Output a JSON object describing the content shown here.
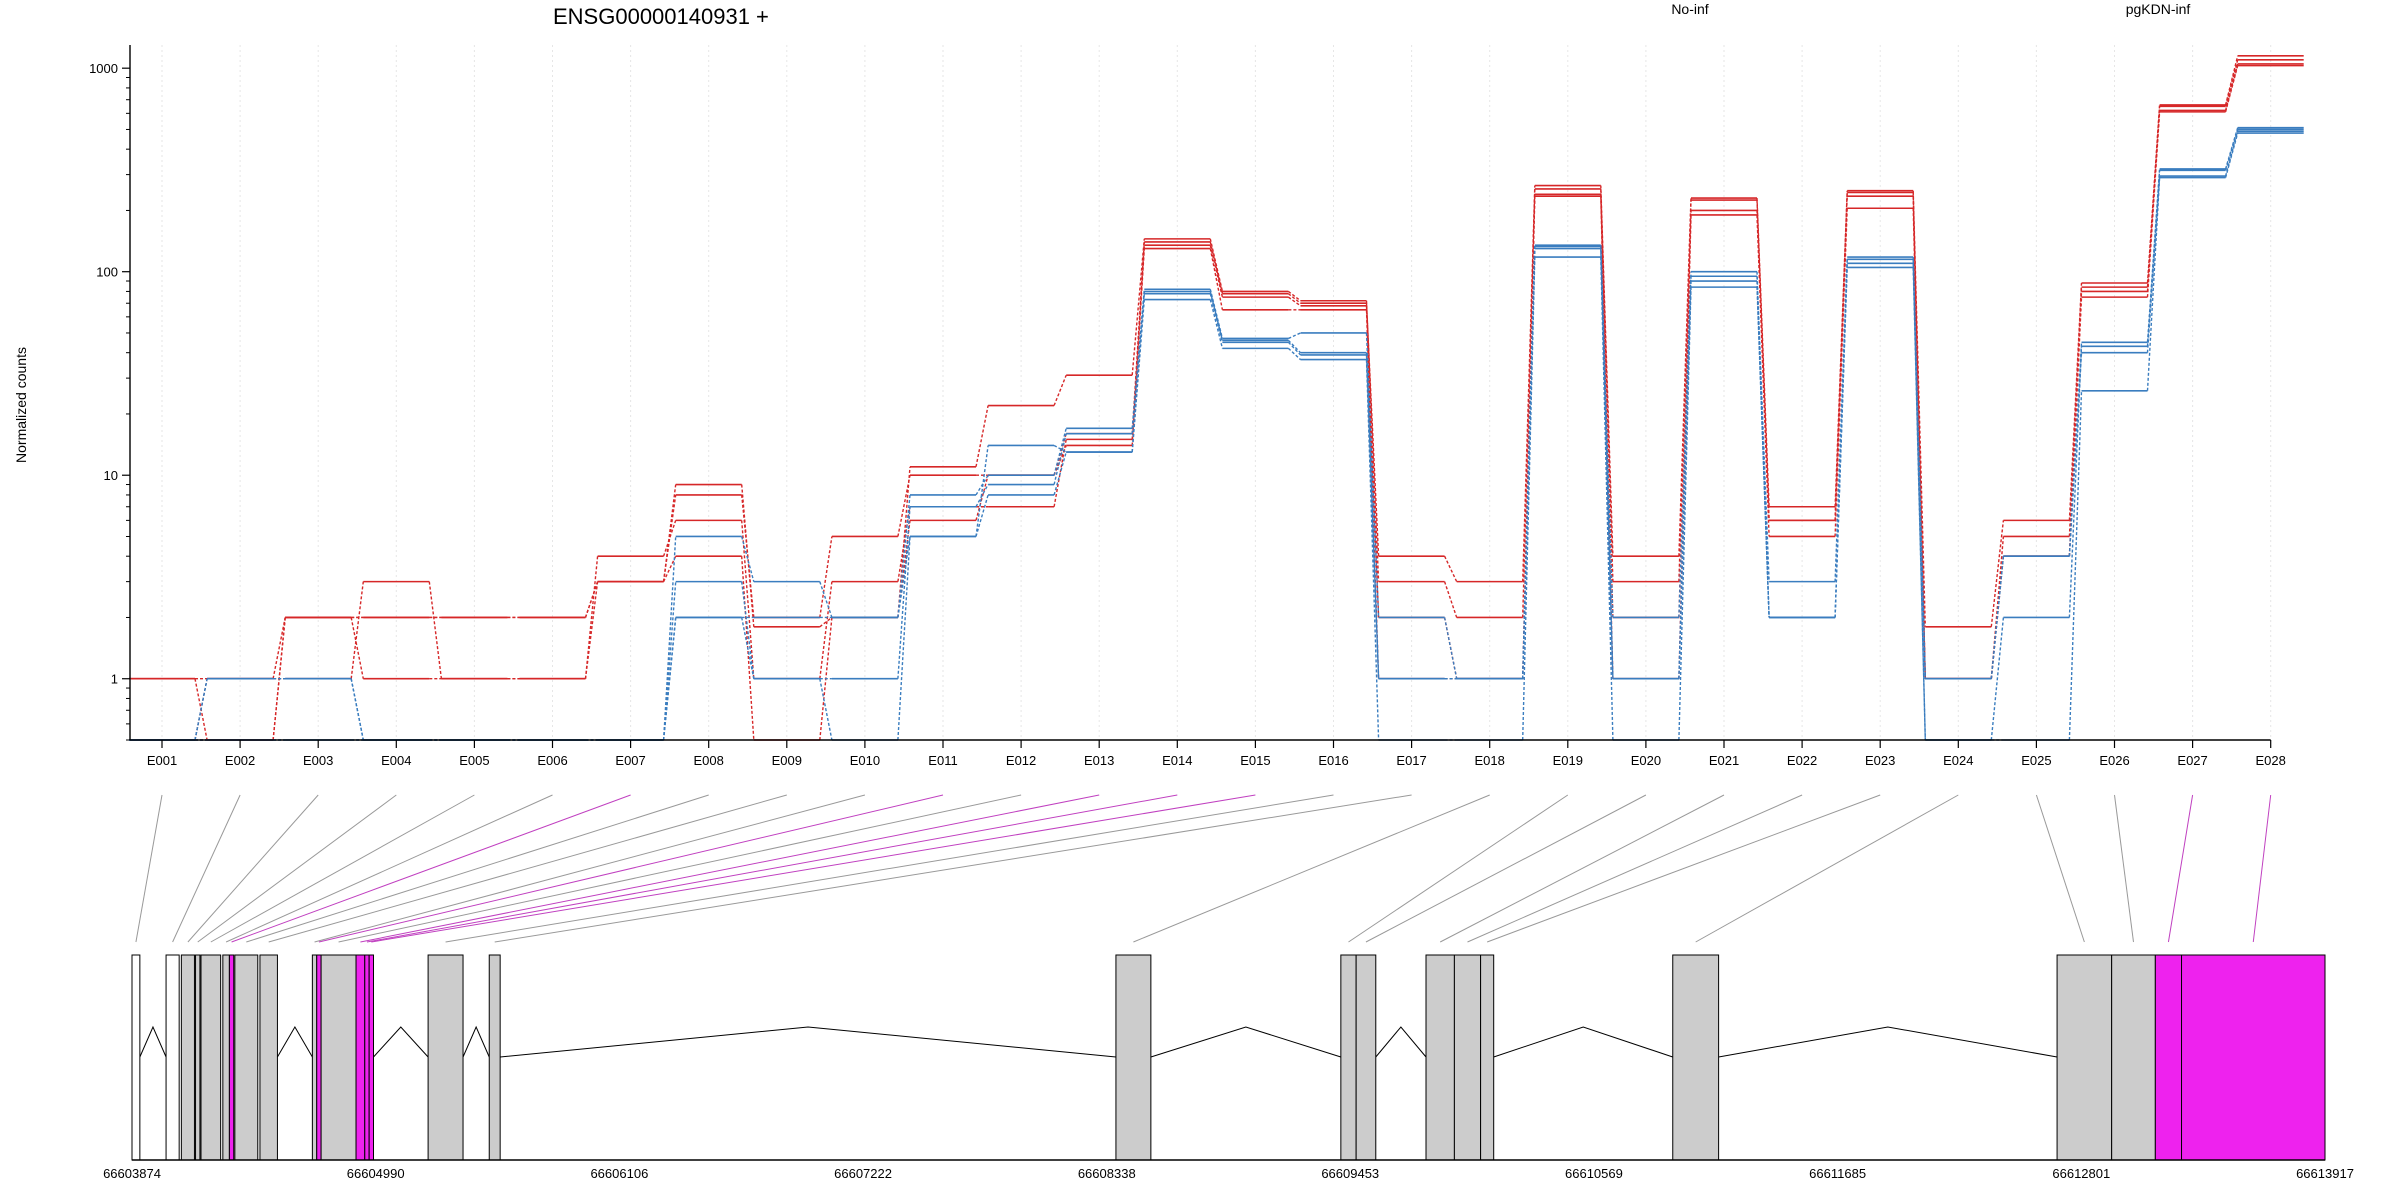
{
  "chart_data": {
    "type": "line",
    "title": "ENSG00000140931 +",
    "ylabel": "Normalized counts",
    "xlabel": "",
    "y_scale": "log",
    "ylim": [
      0.5,
      1300
    ],
    "y_ticks": [
      1,
      10,
      100,
      1000
    ],
    "y_tick_labels": [
      "1",
      "10",
      "100",
      "1000"
    ],
    "grid": true,
    "legend_position": "top",
    "categories": [
      "E001",
      "E002",
      "E003",
      "E004",
      "E005",
      "E006",
      "E007",
      "E008",
      "E009",
      "E010",
      "E011",
      "E012",
      "E013",
      "E014",
      "E015",
      "E016",
      "E017",
      "E018",
      "E019",
      "E020",
      "E021",
      "E022",
      "E023",
      "E024",
      "E025",
      "E026",
      "E027",
      "E028"
    ],
    "floor_value": 0.5,
    "groups": [
      {
        "name": "No-inf",
        "color": "#d62728"
      },
      {
        "name": "pgKDN-inf",
        "color": "#3a7dbf"
      }
    ],
    "series": [
      {
        "group": "No-inf",
        "values": [
          1,
          0.5,
          2,
          2,
          2,
          2,
          3,
          9,
          1.8,
          2,
          11,
          22,
          31,
          145,
          80,
          72,
          3,
          2,
          265,
          4,
          230,
          7,
          250,
          1.8,
          6,
          88,
          660,
          1150
        ]
      },
      {
        "group": "No-inf",
        "values": [
          0.5,
          1,
          1,
          3,
          1,
          1,
          3,
          8,
          2,
          5,
          10,
          10,
          16,
          140,
          78,
          70,
          4,
          3,
          255,
          3,
          225,
          6,
          245,
          1,
          5,
          84,
          650,
          1100
        ]
      },
      {
        "group": "No-inf",
        "values": [
          1,
          1,
          2,
          1,
          1,
          1,
          4,
          6,
          1,
          3,
          7,
          7,
          15,
          135,
          75,
          68,
          2,
          1,
          240,
          2,
          200,
          6,
          235,
          1,
          4,
          80,
          620,
          1050
        ]
      },
      {
        "group": "No-inf",
        "values": [
          0.5,
          0.5,
          2,
          2,
          2,
          2,
          3,
          4,
          0.5,
          2,
          6,
          10,
          14,
          130,
          65,
          65,
          1,
          1,
          235,
          1,
          190,
          5,
          205,
          1,
          4,
          75,
          610,
          1030
        ]
      },
      {
        "group": "pgKDN-inf",
        "values": [
          0.5,
          1,
          1,
          0.5,
          0.5,
          0.5,
          0.5,
          5,
          3,
          2,
          8,
          10,
          17,
          82,
          47,
          50,
          2,
          1,
          135,
          2,
          100,
          3,
          118,
          1,
          4,
          45,
          320,
          510
        ]
      },
      {
        "group": "pgKDN-inf",
        "values": [
          0.5,
          0.5,
          0.5,
          0.5,
          0.5,
          0.5,
          0.5,
          3,
          1,
          1,
          7,
          9,
          16,
          80,
          46,
          40,
          1,
          1,
          133,
          1,
          95,
          2,
          115,
          0.5,
          2,
          43,
          315,
          500
        ]
      },
      {
        "group": "pgKDN-inf",
        "values": [
          0.5,
          1,
          1,
          0.5,
          0.5,
          0.5,
          0.5,
          2,
          2,
          2,
          5,
          8,
          13,
          78,
          45,
          39,
          1,
          1,
          130,
          1,
          90,
          2,
          110,
          1,
          4,
          40,
          295,
          490
        ]
      },
      {
        "group": "pgKDN-inf",
        "values": [
          0.5,
          0.5,
          0.5,
          0.5,
          0.5,
          0.5,
          0.5,
          2,
          1,
          0.5,
          5,
          14,
          13,
          73,
          42,
          37,
          0.5,
          0.5,
          118,
          0.5,
          84,
          2,
          105,
          0.5,
          0.5,
          26,
          290,
          480
        ]
      }
    ],
    "genomic_axis": {
      "range": [
        66603874,
        66613917
      ],
      "ticks": [
        66603874,
        66604990,
        66606106,
        66607222,
        66608338,
        66609453,
        66610569,
        66611685,
        66612801,
        66613917
      ],
      "tick_labels": [
        "66603874",
        "66604990",
        "66606106",
        "66607222",
        "66608338",
        "66609453",
        "66610569",
        "66611685",
        "66612801",
        "66613917"
      ]
    },
    "exons": [
      {
        "id": "E001",
        "start": 66603874,
        "end": 66603910,
        "fill": "#ffffff",
        "highlight": false
      },
      {
        "id": "E002",
        "start": 66604030,
        "end": 66604090,
        "fill": "#ffffff",
        "highlight": false
      },
      {
        "id": "E003",
        "start": 66604100,
        "end": 66604160,
        "fill": "#cccccc",
        "highlight": false
      },
      {
        "id": "E004",
        "start": 66604165,
        "end": 66604185,
        "fill": "#cccccc",
        "highlight": false
      },
      {
        "id": "E005",
        "start": 66604190,
        "end": 66604280,
        "fill": "#cccccc",
        "highlight": false
      },
      {
        "id": "E006",
        "start": 66604290,
        "end": 66604320,
        "fill": "#cccccc",
        "highlight": false
      },
      {
        "id": "E007",
        "start": 66604320,
        "end": 66604340,
        "fill": "#ee22ee",
        "highlight": true
      },
      {
        "id": "E008",
        "start": 66604345,
        "end": 66604450,
        "fill": "#cccccc",
        "highlight": false
      },
      {
        "id": "E009",
        "start": 66604460,
        "end": 66604540,
        "fill": "#cccccc",
        "highlight": false
      },
      {
        "id": "E010",
        "start": 66604700,
        "end": 66604720,
        "fill": "#cccccc",
        "highlight": false
      },
      {
        "id": "E011",
        "start": 66604720,
        "end": 66604740,
        "fill": "#ee22ee",
        "highlight": true
      },
      {
        "id": "E012",
        "start": 66604740,
        "end": 66604900,
        "fill": "#cccccc",
        "highlight": false
      },
      {
        "id": "E013",
        "start": 66604900,
        "end": 66604940,
        "fill": "#ee22ee",
        "highlight": true
      },
      {
        "id": "E014",
        "start": 66604940,
        "end": 66604960,
        "fill": "#ee22ee",
        "highlight": true
      },
      {
        "id": "E015",
        "start": 66604960,
        "end": 66604980,
        "fill": "#ee22ee",
        "highlight": true
      },
      {
        "id": "E016",
        "start": 66605230,
        "end": 66605390,
        "fill": "#cccccc",
        "highlight": false
      },
      {
        "id": "E017",
        "start": 66605510,
        "end": 66605560,
        "fill": "#cccccc",
        "highlight": false
      },
      {
        "id": "E018",
        "start": 66608380,
        "end": 66608540,
        "fill": "#cccccc",
        "highlight": false
      },
      {
        "id": "E019",
        "start": 66609410,
        "end": 66609480,
        "fill": "#cccccc",
        "highlight": false
      },
      {
        "id": "E020",
        "start": 66609480,
        "end": 66609570,
        "fill": "#cccccc",
        "highlight": false
      },
      {
        "id": "E021",
        "start": 66609800,
        "end": 66609930,
        "fill": "#cccccc",
        "highlight": false
      },
      {
        "id": "E022",
        "start": 66609930,
        "end": 66610050,
        "fill": "#cccccc",
        "highlight": false
      },
      {
        "id": "E023",
        "start": 66610050,
        "end": 66610110,
        "fill": "#cccccc",
        "highlight": false
      },
      {
        "id": "E024",
        "start": 66610930,
        "end": 66611140,
        "fill": "#cccccc",
        "highlight": false
      },
      {
        "id": "E025",
        "start": 66612690,
        "end": 66612940,
        "fill": "#cccccc",
        "highlight": false
      },
      {
        "id": "E026",
        "start": 66612940,
        "end": 66613140,
        "fill": "#cccccc",
        "highlight": false
      },
      {
        "id": "E027",
        "start": 66613140,
        "end": 66613260,
        "fill": "#ee22ee",
        "highlight": true
      },
      {
        "id": "E028",
        "start": 66613260,
        "end": 66613917,
        "fill": "#ee22ee",
        "highlight": true
      }
    ]
  }
}
